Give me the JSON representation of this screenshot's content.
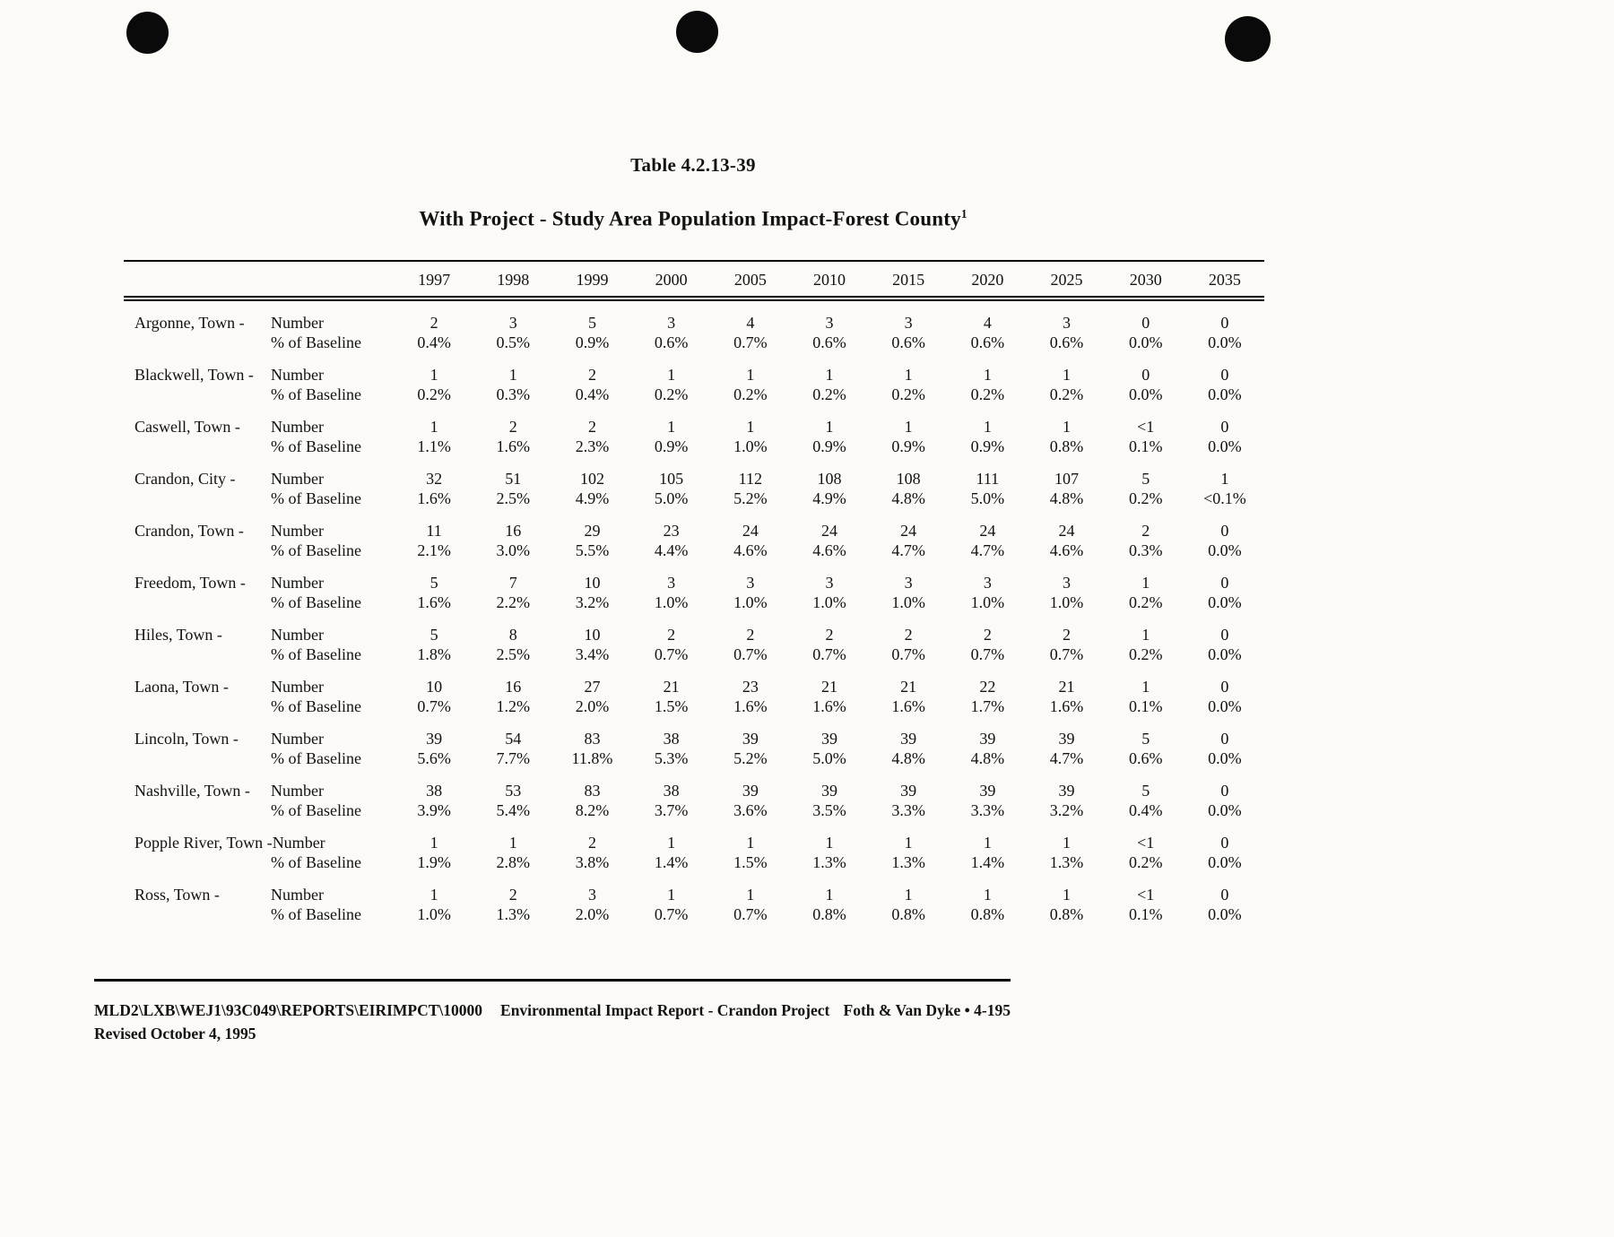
{
  "header": {
    "table_number": "Table 4.2.13-39",
    "title": "With Project - Study Area Population Impact-Forest County",
    "title_superscript": "1"
  },
  "table": {
    "years": [
      "1997",
      "1998",
      "1999",
      "2000",
      "2005",
      "2010",
      "2015",
      "2020",
      "2025",
      "2030",
      "2035"
    ],
    "row_labels": {
      "number": "Number",
      "percent": "% of Baseline"
    },
    "rows": [
      {
        "town": "Argonne, Town -",
        "number": [
          "2",
          "3",
          "5",
          "3",
          "4",
          "3",
          "3",
          "4",
          "3",
          "0",
          "0"
        ],
        "percent": [
          "0.4%",
          "0.5%",
          "0.9%",
          "0.6%",
          "0.7%",
          "0.6%",
          "0.6%",
          "0.6%",
          "0.6%",
          "0.0%",
          "0.0%"
        ]
      },
      {
        "town": "Blackwell, Town -",
        "number": [
          "1",
          "1",
          "2",
          "1",
          "1",
          "1",
          "1",
          "1",
          "1",
          "0",
          "0"
        ],
        "percent": [
          "0.2%",
          "0.3%",
          "0.4%",
          "0.2%",
          "0.2%",
          "0.2%",
          "0.2%",
          "0.2%",
          "0.2%",
          "0.0%",
          "0.0%"
        ]
      },
      {
        "town": "Caswell, Town -",
        "number": [
          "1",
          "2",
          "2",
          "1",
          "1",
          "1",
          "1",
          "1",
          "1",
          "<1",
          "0"
        ],
        "percent": [
          "1.1%",
          "1.6%",
          "2.3%",
          "0.9%",
          "1.0%",
          "0.9%",
          "0.9%",
          "0.9%",
          "0.8%",
          "0.1%",
          "0.0%"
        ]
      },
      {
        "town": "Crandon, City -",
        "number": [
          "32",
          "51",
          "102",
          "105",
          "112",
          "108",
          "108",
          "111",
          "107",
          "5",
          "1"
        ],
        "percent": [
          "1.6%",
          "2.5%",
          "4.9%",
          "5.0%",
          "5.2%",
          "4.9%",
          "4.8%",
          "5.0%",
          "4.8%",
          "0.2%",
          "<0.1%"
        ]
      },
      {
        "town": "Crandon, Town -",
        "number": [
          "11",
          "16",
          "29",
          "23",
          "24",
          "24",
          "24",
          "24",
          "24",
          "2",
          "0"
        ],
        "percent": [
          "2.1%",
          "3.0%",
          "5.5%",
          "4.4%",
          "4.6%",
          "4.6%",
          "4.7%",
          "4.7%",
          "4.6%",
          "0.3%",
          "0.0%"
        ]
      },
      {
        "town": "Freedom, Town -",
        "number": [
          "5",
          "7",
          "10",
          "3",
          "3",
          "3",
          "3",
          "3",
          "3",
          "1",
          "0"
        ],
        "percent": [
          "1.6%",
          "2.2%",
          "3.2%",
          "1.0%",
          "1.0%",
          "1.0%",
          "1.0%",
          "1.0%",
          "1.0%",
          "0.2%",
          "0.0%"
        ]
      },
      {
        "town": "Hiles, Town -",
        "number": [
          "5",
          "8",
          "10",
          "2",
          "2",
          "2",
          "2",
          "2",
          "2",
          "1",
          "0"
        ],
        "percent": [
          "1.8%",
          "2.5%",
          "3.4%",
          "0.7%",
          "0.7%",
          "0.7%",
          "0.7%",
          "0.7%",
          "0.7%",
          "0.2%",
          "0.0%"
        ]
      },
      {
        "town": "Laona, Town -",
        "number": [
          "10",
          "16",
          "27",
          "21",
          "23",
          "21",
          "21",
          "22",
          "21",
          "1",
          "0"
        ],
        "percent": [
          "0.7%",
          "1.2%",
          "2.0%",
          "1.5%",
          "1.6%",
          "1.6%",
          "1.6%",
          "1.7%",
          "1.6%",
          "0.1%",
          "0.0%"
        ]
      },
      {
        "town": "Lincoln, Town -",
        "number": [
          "39",
          "54",
          "83",
          "38",
          "39",
          "39",
          "39",
          "39",
          "39",
          "5",
          "0"
        ],
        "percent": [
          "5.6%",
          "7.7%",
          "11.8%",
          "5.3%",
          "5.2%",
          "5.0%",
          "4.8%",
          "4.8%",
          "4.7%",
          "0.6%",
          "0.0%"
        ]
      },
      {
        "town": "Nashville, Town -",
        "number": [
          "38",
          "53",
          "83",
          "38",
          "39",
          "39",
          "39",
          "39",
          "39",
          "5",
          "0"
        ],
        "percent": [
          "3.9%",
          "5.4%",
          "8.2%",
          "3.7%",
          "3.6%",
          "3.5%",
          "3.3%",
          "3.3%",
          "3.2%",
          "0.4%",
          "0.0%"
        ]
      },
      {
        "town": "Popple River, Town -",
        "number": [
          "1",
          "1",
          "2",
          "1",
          "1",
          "1",
          "1",
          "1",
          "1",
          "<1",
          "0"
        ],
        "percent": [
          "1.9%",
          "2.8%",
          "3.8%",
          "1.4%",
          "1.5%",
          "1.3%",
          "1.3%",
          "1.4%",
          "1.3%",
          "0.2%",
          "0.0%"
        ]
      },
      {
        "town": "Ross, Town -",
        "number": [
          "1",
          "2",
          "3",
          "1",
          "1",
          "1",
          "1",
          "1",
          "1",
          "<1",
          "0"
        ],
        "percent": [
          "1.0%",
          "1.3%",
          "2.0%",
          "0.7%",
          "0.7%",
          "0.8%",
          "0.8%",
          "0.8%",
          "0.8%",
          "0.1%",
          "0.0%"
        ]
      }
    ]
  },
  "footer": {
    "file_path": "MLD2\\LXB\\WEJ1\\93C049\\REPORTS\\EIRIMPCT\\10000",
    "report_title": "Environmental Impact Report - Crandon Project",
    "revised": "Revised October 4, 1995",
    "right": "Foth & Van Dyke • 4-195"
  }
}
